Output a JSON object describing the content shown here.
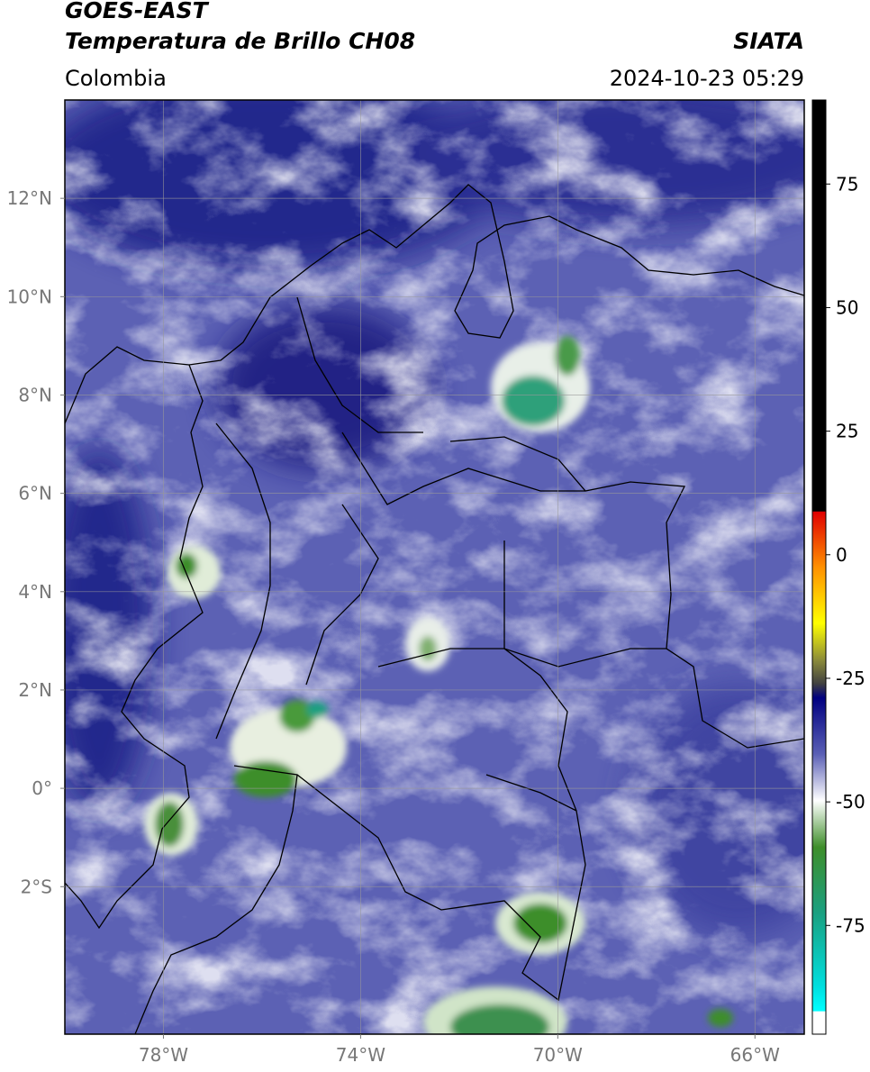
{
  "chart_data": {
    "type": "map",
    "title": "GOES-EAST",
    "subtitle": "Temperatura de Brillo CH08",
    "region": "Colombia",
    "source": "SIATA",
    "timestamp": "2024-10-23 05:29",
    "xlim": [
      -80,
      -65
    ],
    "ylim": [
      -5,
      14
    ],
    "xticks": [
      {
        "value": -78,
        "label": "78°W"
      },
      {
        "value": -74,
        "label": "74°W"
      },
      {
        "value": -70,
        "label": "70°W"
      },
      {
        "value": -66,
        "label": "66°W"
      }
    ],
    "yticks": [
      {
        "value": 12,
        "label": "12°N"
      },
      {
        "value": 10,
        "label": "10°N"
      },
      {
        "value": 8,
        "label": "8°N"
      },
      {
        "value": 6,
        "label": "6°N"
      },
      {
        "value": 4,
        "label": "4°N"
      },
      {
        "value": 2,
        "label": "2°N"
      },
      {
        "value": 0,
        "label": "0°"
      },
      {
        "value": -2,
        "label": "2°S"
      }
    ],
    "grid": true,
    "colorbar": {
      "lim": [
        -97,
        92
      ],
      "ticks": [
        75,
        50,
        25,
        0,
        -25,
        -50,
        -75
      ]
    }
  }
}
